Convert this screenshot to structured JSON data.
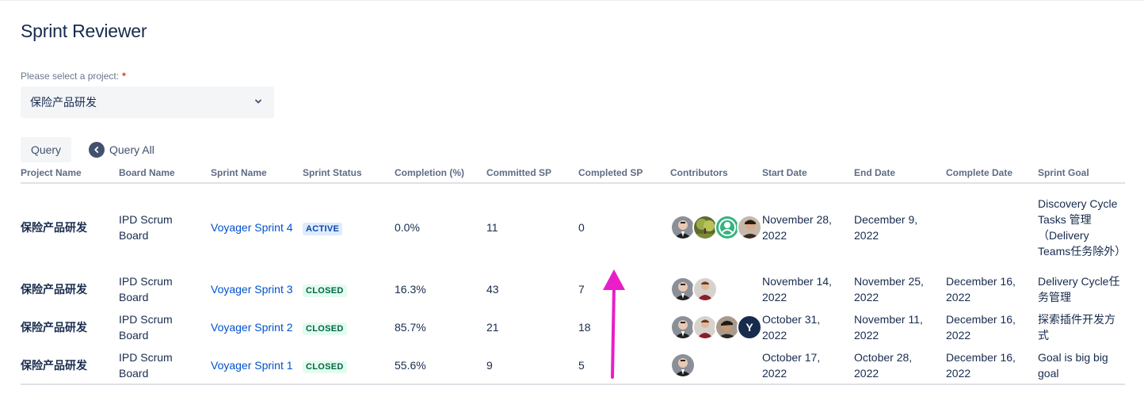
{
  "title": "Sprint Reviewer",
  "project_select": {
    "label": "Please select a project:",
    "required_mark": "*",
    "value": "保险产品研发"
  },
  "buttons": {
    "query": "Query",
    "query_all": "Query All"
  },
  "table": {
    "columns": [
      "Project Name",
      "Board Name",
      "Sprint Name",
      "Sprint Status",
      "Completion (%)",
      "Committed SP",
      "Completed SP",
      "Contributors",
      "Start Date",
      "End Date",
      "Complete Date",
      "Sprint Goal"
    ],
    "rows": [
      {
        "project": "保险产品研发",
        "board": "IPD Scrum Board",
        "sprint": "Voyager Sprint 4",
        "status": "ACTIVE",
        "completion": "0.0%",
        "committed": "11",
        "completed": "0",
        "contributors": [
          "person-photo-avatar",
          "tree-photo-avatar",
          "default-user-avatar",
          "person-photo-avatar"
        ],
        "start": "November 28, 2022",
        "end": "December 9, 2022",
        "complete_date": "",
        "goal": "Discovery Cycle Tasks 管理（Delivery Teams任务除外）"
      },
      {
        "project": "保险产品研发",
        "board": "IPD Scrum Board",
        "sprint": "Voyager Sprint 3",
        "status": "CLOSED",
        "completion": "16.3%",
        "committed": "43",
        "completed": "7",
        "contributors": [
          "person-photo-avatar",
          "person-photo-avatar"
        ],
        "start": "November 14, 2022",
        "end": "November 25, 2022",
        "complete_date": "December 16, 2022",
        "goal": "Delivery Cycle任务管理"
      },
      {
        "project": "保险产品研发",
        "board": "IPD Scrum Board",
        "sprint": "Voyager Sprint 2",
        "status": "CLOSED",
        "completion": "85.7%",
        "committed": "21",
        "completed": "18",
        "contributors": [
          "person-photo-avatar",
          "person-photo-avatar",
          "person-photo-avatar",
          "letter-avatar"
        ],
        "contributor_letter": "Y",
        "start": "October 31, 2022",
        "end": "November 11, 2022",
        "complete_date": "December 16, 2022",
        "goal": "探索插件开发方式"
      },
      {
        "project": "保险产品研发",
        "board": "IPD Scrum Board",
        "sprint": "Voyager Sprint 1",
        "status": "CLOSED",
        "completion": "55.6%",
        "committed": "9",
        "completed": "5",
        "contributors": [
          "person-photo-avatar"
        ],
        "start": "October 17, 2022",
        "end": "October 28, 2022",
        "complete_date": "December 16, 2022",
        "goal": "Goal is big big goal"
      }
    ]
  },
  "annotation": {
    "arrow_color": "#e91ec8"
  },
  "colors": {
    "link": "#0052cc",
    "active_bg": "#deebff",
    "active_text": "#0747a6",
    "closed_bg": "#e3fcef",
    "closed_text": "#006644"
  }
}
